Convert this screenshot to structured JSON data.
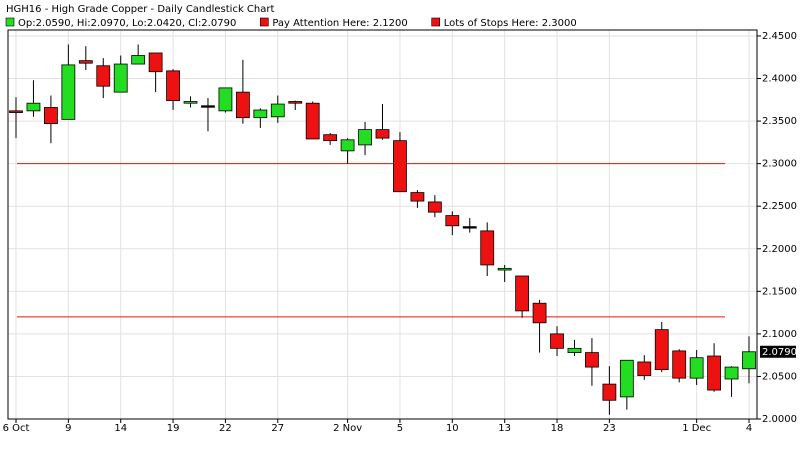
{
  "chart_data": {
    "type": "candlestick",
    "title": "HGH16 - High Grade Copper - Daily Candlestick Chart",
    "categories": [
      "6 Oct",
      null,
      null,
      "9",
      null,
      null,
      "14",
      null,
      null,
      "19",
      null,
      null,
      "22",
      null,
      null,
      "27",
      null,
      null,
      null,
      "2 Nov",
      null,
      null,
      "5",
      null,
      null,
      "10",
      null,
      null,
      "13",
      null,
      null,
      "18",
      null,
      null,
      "23",
      null,
      null,
      null,
      null,
      "1 Dec",
      null,
      null,
      "4"
    ],
    "series": [
      {
        "name": "Op:2.0590, Hi:2.0970, Lo:2.0420, Cl:2.0790",
        "up_color": "#22dd22",
        "down_color": "#ee1111",
        "flat_color": "#000000",
        "open": [
          2.362,
          2.362,
          2.366,
          2.352,
          2.421,
          2.415,
          2.384,
          2.417,
          2.43,
          2.409,
          2.371,
          2.368,
          2.362,
          2.384,
          2.354,
          2.355,
          2.373,
          2.371,
          2.334,
          2.315,
          2.322,
          2.34,
          2.327,
          2.266,
          2.255,
          2.239,
          2.226,
          2.221,
          2.175,
          2.168,
          2.136,
          2.1,
          2.078,
          2.078,
          2.041,
          2.026,
          2.067,
          2.105,
          2.08,
          2.048,
          2.074,
          2.047,
          2.059
        ],
        "high": [
          2.378,
          2.398,
          2.38,
          2.44,
          2.438,
          2.424,
          2.427,
          2.44,
          2.43,
          2.411,
          2.379,
          2.377,
          2.389,
          2.422,
          2.365,
          2.38,
          2.374,
          2.373,
          2.336,
          2.33,
          2.349,
          2.37,
          2.337,
          2.269,
          2.263,
          2.244,
          2.236,
          2.231,
          2.181,
          2.167,
          2.14,
          2.109,
          2.093,
          2.095,
          2.062,
          2.069,
          2.075,
          2.114,
          2.082,
          2.081,
          2.089,
          2.062,
          2.097
        ],
        "low": [
          2.33,
          2.355,
          2.324,
          2.352,
          2.41,
          2.377,
          2.384,
          2.417,
          2.384,
          2.363,
          2.366,
          2.338,
          2.36,
          2.347,
          2.342,
          2.348,
          2.363,
          2.329,
          2.322,
          2.3,
          2.31,
          2.328,
          2.267,
          2.248,
          2.237,
          2.216,
          2.219,
          2.168,
          2.161,
          2.119,
          2.078,
          2.074,
          2.074,
          2.039,
          2.005,
          2.011,
          2.046,
          2.055,
          2.043,
          2.04,
          2.032,
          2.026,
          2.042
        ],
        "close": [
          2.36,
          2.371,
          2.347,
          2.416,
          2.418,
          2.391,
          2.417,
          2.427,
          2.408,
          2.374,
          2.373,
          2.368,
          2.389,
          2.354,
          2.363,
          2.37,
          2.371,
          2.329,
          2.327,
          2.328,
          2.34,
          2.33,
          2.267,
          2.256,
          2.243,
          2.227,
          2.226,
          2.181,
          2.177,
          2.127,
          2.113,
          2.083,
          2.083,
          2.061,
          2.022,
          2.069,
          2.051,
          2.058,
          2.048,
          2.072,
          2.034,
          2.061,
          2.079
        ]
      }
    ],
    "lines": [
      {
        "name": "Pay Attention Here: 2.1200",
        "value": 2.12,
        "color": "#ee1111"
      },
      {
        "name": "Lots of Stops Here: 2.3000",
        "value": 2.3,
        "color": "#ee1111"
      }
    ],
    "last_price": {
      "value": 2.079,
      "label": "2.0790"
    },
    "ylim": [
      2.0,
      2.457
    ],
    "yticks": [
      {
        "value": 2.0,
        "label": "2.0000"
      },
      {
        "value": 2.05,
        "label": "2.0500"
      },
      {
        "value": 2.1,
        "label": "2.1000"
      },
      {
        "value": 2.15,
        "label": "2.1500"
      },
      {
        "value": 2.2,
        "label": "2.2000"
      },
      {
        "value": 2.25,
        "label": "2.2500"
      },
      {
        "value": 2.3,
        "label": "2.3000"
      },
      {
        "value": 2.35,
        "label": "2.3500"
      },
      {
        "value": 2.4,
        "label": "2.4000"
      },
      {
        "value": 2.45,
        "label": "2.4500"
      }
    ],
    "grid": true
  }
}
